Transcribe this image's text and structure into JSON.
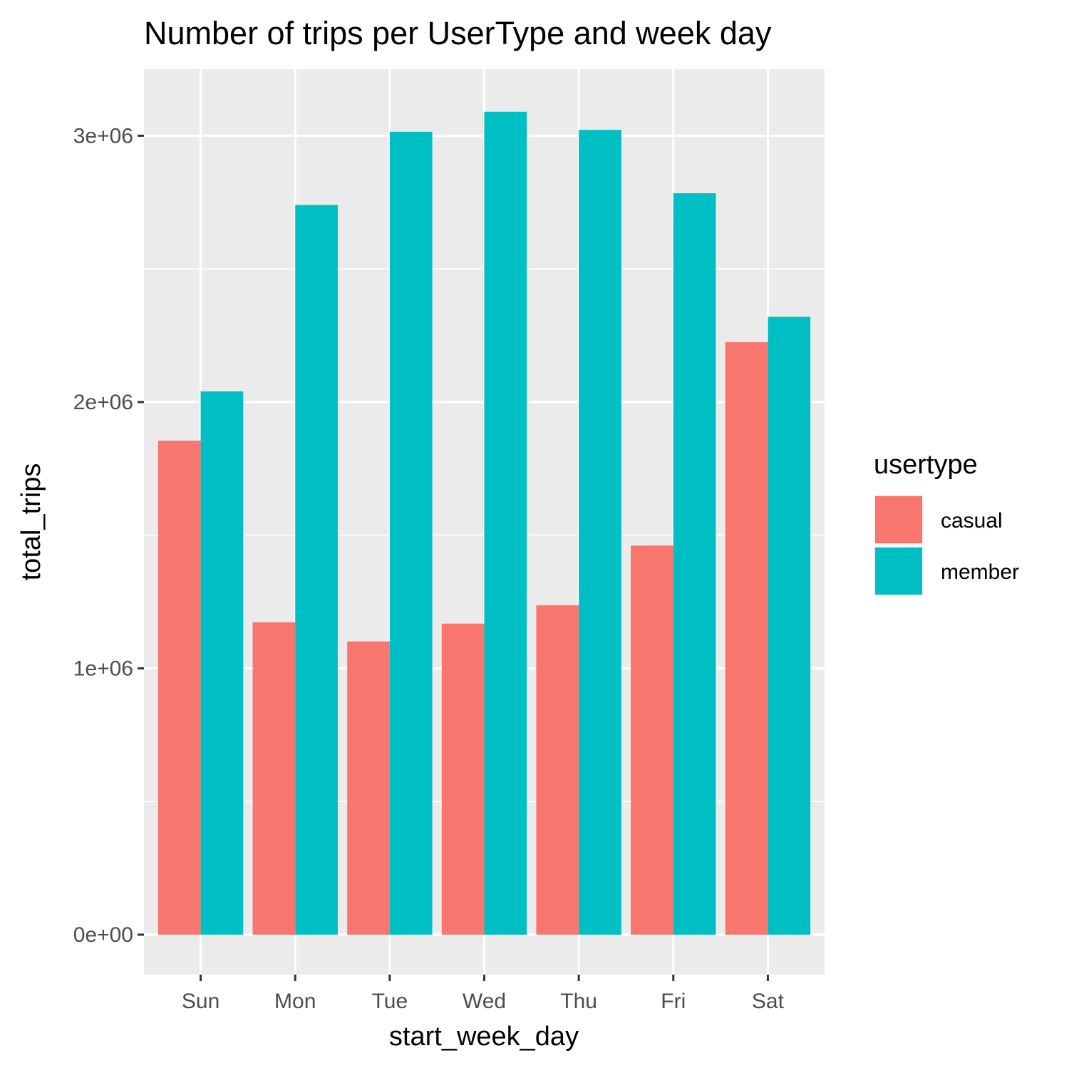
{
  "chart_data": {
    "type": "bar",
    "title": "Number of trips  per UserType and week day",
    "xlabel": "start_week_day",
    "ylabel": "total_trips",
    "categories": [
      "Sun",
      "Mon",
      "Tue",
      "Wed",
      "Thu",
      "Fri",
      "Sat"
    ],
    "series": [
      {
        "name": "casual",
        "color": "#F8766D",
        "values": [
          1855000,
          1173000,
          1101000,
          1168000,
          1237000,
          1461000,
          2225000
        ]
      },
      {
        "name": "member",
        "color": "#00BFC4",
        "values": [
          2040000,
          2740000,
          3015000,
          3090000,
          3022000,
          2784000,
          2320000
        ]
      }
    ],
    "y_ticks": [
      0,
      1000000,
      2000000,
      3000000
    ],
    "y_tick_labels": [
      "0e+00",
      "1e+06",
      "2e+06",
      "3e+06"
    ],
    "ylim": [
      -150000,
      3250000
    ],
    "grid": true,
    "legend": {
      "title": "usertype",
      "placement": "right"
    },
    "panel_background": "#EBEBEB"
  }
}
